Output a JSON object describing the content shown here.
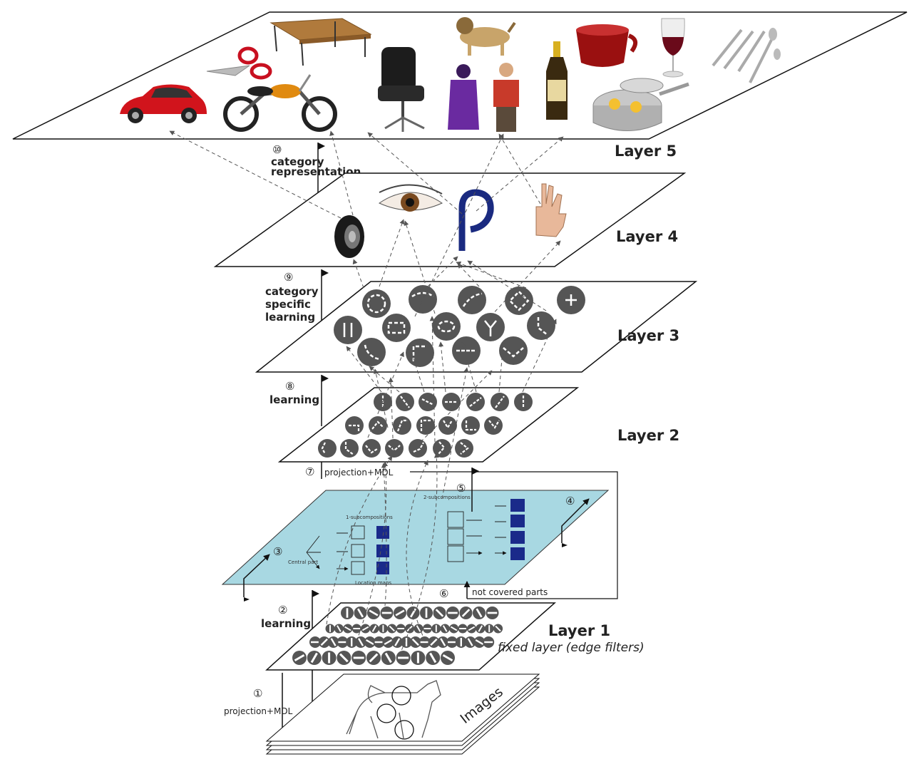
{
  "layers": {
    "layer5": "Layer 5",
    "layer4": "Layer 4",
    "layer3": "Layer 3",
    "layer2": "Layer 2",
    "layer1": "Layer 1",
    "layer1_sub": "fixed layer (edge filters)",
    "images": "Images"
  },
  "steps": {
    "s1_num": "①",
    "s1_label": "projection+MDL",
    "s2_num": "②",
    "s2_label": "learning",
    "s3_num": "③",
    "s4_num": "④",
    "s5_num": "⑤",
    "s6_num": "⑥",
    "s7_num": "⑦",
    "s7_label": "projection+MDL",
    "s8_num": "⑧",
    "s8_label": "learning",
    "s9_num": "⑨",
    "s9_line1": "category",
    "s9_line2": "specific",
    "s9_line3": "learning",
    "s10_num": "⑩",
    "s10_line1": "category",
    "s10_line2": "representation",
    "not_covered": "not covered parts"
  },
  "process_panel": {
    "sub1": "1-subcompositions",
    "sub2": "2-subcompositions",
    "central": "Central part",
    "location": "Location maps"
  },
  "layer5_objects": [
    "car-icon",
    "scissors-icon",
    "table-icon",
    "motorcycle-icon",
    "office-chair-icon",
    "dog-icon",
    "person-icon",
    "person-icon",
    "bottle-icon",
    "mug-icon",
    "pan-icon",
    "wine-glass-icon",
    "cutlery-icon"
  ],
  "layer4_parts": [
    "tire-icon",
    "eye-icon",
    "handle-icon",
    "hand-icon"
  ],
  "colors": {
    "node": "#555555",
    "panel": "#a8d8e2",
    "panel_box": "#1a2a8a"
  }
}
